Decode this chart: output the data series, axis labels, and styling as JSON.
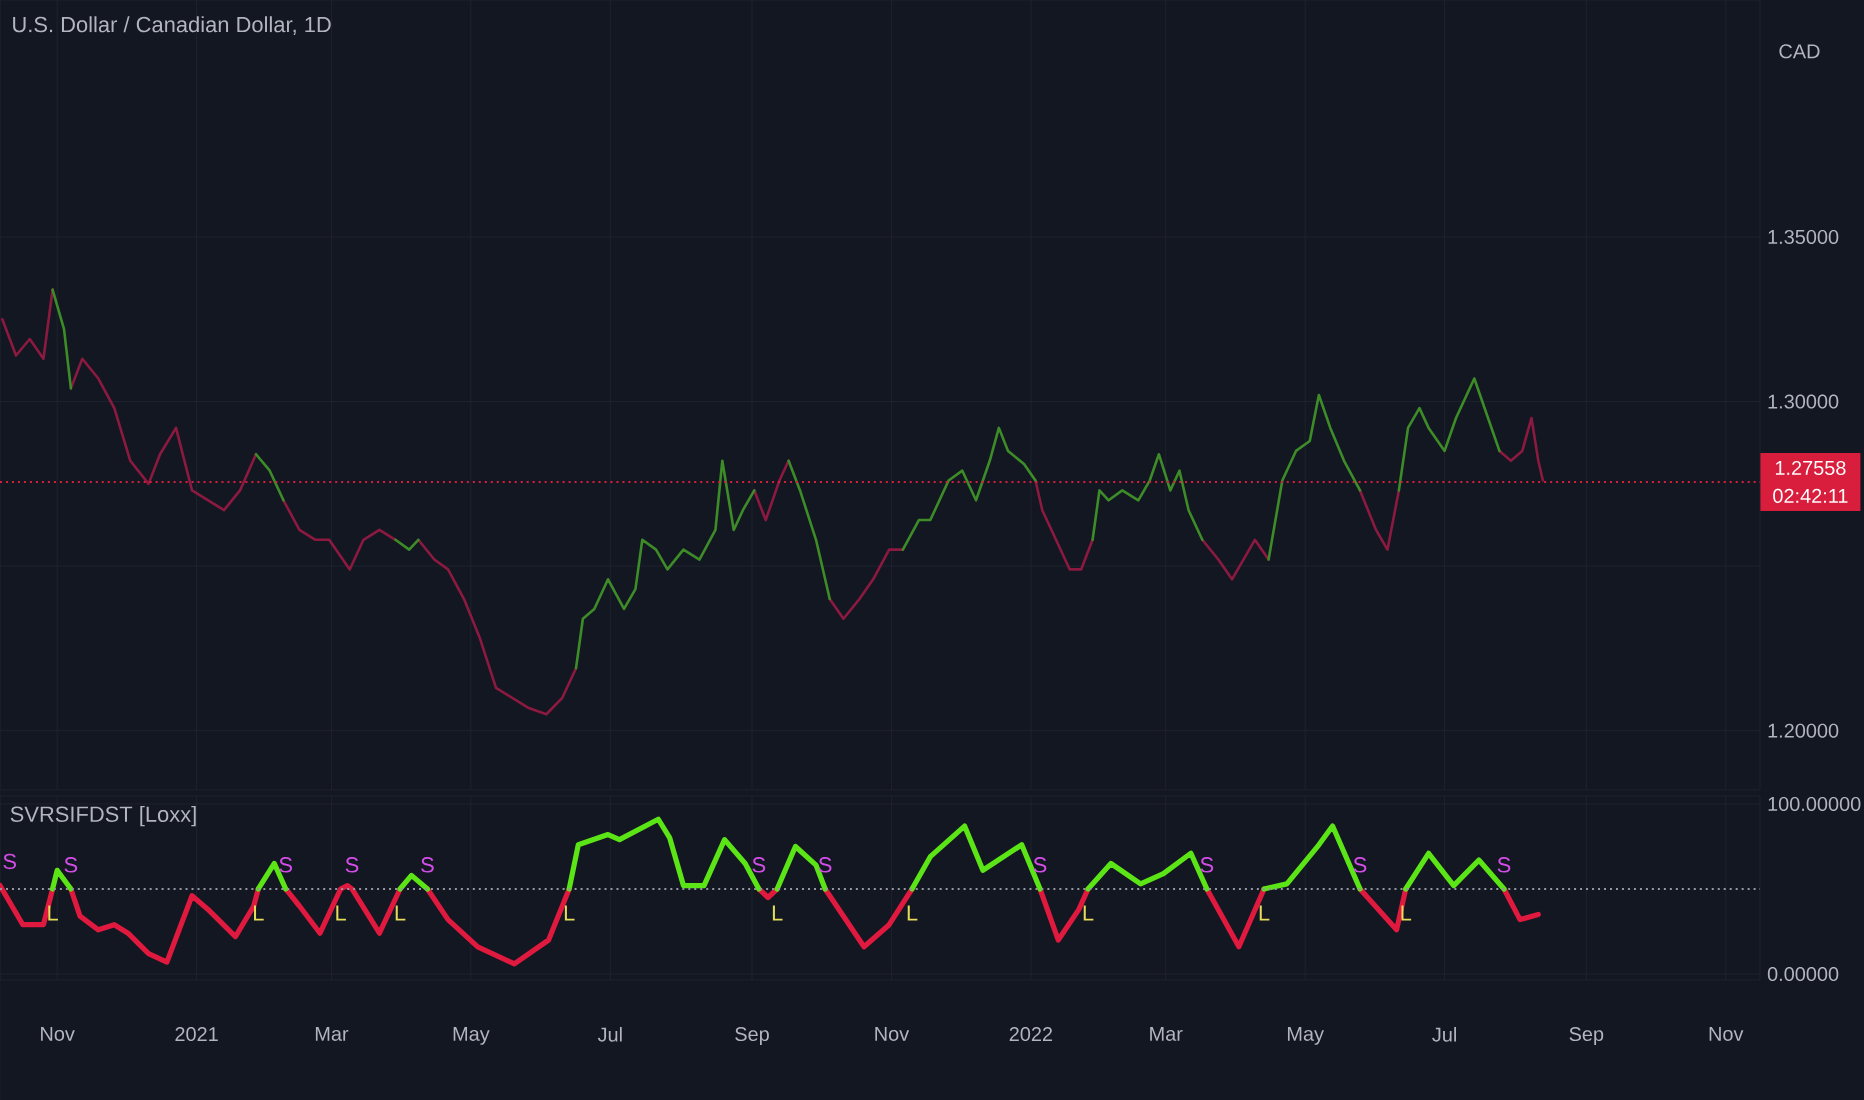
{
  "chart_data": [
    {
      "type": "line",
      "title": "U.S. Dollar / Canadian Dollar, 1D",
      "ylabel": "CAD",
      "x": [
        "2020-10-08",
        "2020-10-14",
        "2020-10-20",
        "2020-10-26",
        "2020-10-30",
        "2020-11-04",
        "2020-11-07",
        "2020-11-12",
        "2020-11-19",
        "2020-11-26",
        "2020-12-03",
        "2020-12-11",
        "2020-12-16",
        "2020-12-23",
        "2020-12-30",
        "2021-01-06",
        "2021-01-13",
        "2021-01-20",
        "2021-01-27",
        "2021-02-02",
        "2021-02-08",
        "2021-02-15",
        "2021-02-22",
        "2021-02-28",
        "2021-03-09",
        "2021-03-15",
        "2021-03-22",
        "2021-03-29",
        "2021-04-04",
        "2021-04-08",
        "2021-04-15",
        "2021-04-21",
        "2021-04-28",
        "2021-05-05",
        "2021-05-12",
        "2021-05-19",
        "2021-05-26",
        "2021-06-03",
        "2021-06-10",
        "2021-06-16",
        "2021-06-19",
        "2021-06-24",
        "2021-06-30",
        "2021-07-07",
        "2021-07-12",
        "2021-07-15",
        "2021-07-21",
        "2021-07-26",
        "2021-08-02",
        "2021-08-09",
        "2021-08-16",
        "2021-08-19",
        "2021-08-24",
        "2021-08-28",
        "2021-09-02",
        "2021-09-07",
        "2021-09-13",
        "2021-09-17",
        "2021-09-22",
        "2021-09-29",
        "2021-10-05",
        "2021-10-11",
        "2021-10-18",
        "2021-10-24",
        "2021-10-31",
        "2021-11-06",
        "2021-11-13",
        "2021-11-18",
        "2021-11-26",
        "2021-12-02",
        "2021-12-08",
        "2021-12-14",
        "2021-12-18",
        "2021-12-22",
        "2021-12-29",
        "2022-01-03",
        "2022-01-06",
        "2022-01-12",
        "2022-01-18",
        "2022-01-23",
        "2022-01-28",
        "2022-01-31",
        "2022-02-04",
        "2022-02-10",
        "2022-02-17",
        "2022-02-22",
        "2022-02-26",
        "2022-03-03",
        "2022-03-07",
        "2022-03-11",
        "2022-03-17",
        "2022-03-24",
        "2022-03-30",
        "2022-04-04",
        "2022-04-09",
        "2022-04-15",
        "2022-04-21",
        "2022-04-27",
        "2022-05-03",
        "2022-05-07",
        "2022-05-12",
        "2022-05-18",
        "2022-05-25",
        "2022-06-01",
        "2022-06-06",
        "2022-06-11",
        "2022-06-15",
        "2022-06-20",
        "2022-06-24",
        "2022-07-01",
        "2022-07-06",
        "2022-07-10",
        "2022-07-14",
        "2022-07-20",
        "2022-07-25",
        "2022-07-30",
        "2022-08-04",
        "2022-08-08",
        "2022-08-11",
        "2022-08-13"
      ],
      "series": [
        {
          "color": "#8c1a40",
          "values": [
            1.325,
            1.314,
            1.319,
            1.313,
            1.334,
            null,
            1.304,
            1.313,
            1.307,
            1.298,
            1.282,
            1.275,
            1.284,
            1.292,
            1.273,
            1.27,
            1.267,
            1.273,
            1.284,
            null,
            1.27,
            1.261,
            1.258,
            1.258,
            1.249,
            1.258,
            1.261,
            1.258,
            null,
            1.258,
            1.252,
            1.249,
            1.24,
            1.228,
            1.213,
            1.21,
            1.207,
            1.205,
            1.21,
            1.219,
            null,
            null,
            null,
            null,
            null,
            null,
            null,
            null,
            null,
            null,
            null,
            null,
            null,
            null,
            1.273,
            1.264,
            1.276,
            1.282,
            null,
            null,
            1.24,
            1.234,
            1.24,
            1.246,
            1.255,
            1.255,
            null,
            null,
            null,
            null,
            null,
            null,
            null,
            null,
            null,
            1.276,
            1.267,
            1.258,
            1.249,
            1.249,
            1.258,
            null,
            null,
            null,
            null,
            null,
            null,
            null,
            null,
            null,
            1.258,
            1.252,
            1.246,
            1.252,
            1.258,
            1.252,
            null,
            null,
            null,
            null,
            null,
            null,
            1.273,
            1.261,
            1.255,
            1.273,
            null,
            null,
            null,
            null,
            null,
            null,
            null,
            null,
            1.285,
            1.282,
            1.285,
            1.295,
            1.282,
            1.276
          ]
        },
        {
          "color": "#3d8c28",
          "values": [
            null,
            null,
            null,
            null,
            1.334,
            1.322,
            1.304,
            null,
            null,
            null,
            null,
            null,
            null,
            null,
            null,
            null,
            null,
            null,
            1.284,
            1.279,
            1.27,
            null,
            null,
            null,
            null,
            null,
            null,
            1.258,
            1.255,
            1.258,
            null,
            null,
            null,
            null,
            null,
            null,
            null,
            null,
            null,
            1.219,
            1.234,
            1.237,
            1.246,
            1.237,
            1.243,
            1.258,
            1.255,
            1.249,
            1.255,
            1.252,
            1.261,
            1.282,
            1.261,
            1.267,
            1.273,
            null,
            null,
            1.282,
            1.273,
            1.258,
            1.24,
            null,
            null,
            null,
            null,
            1.255,
            1.264,
            1.264,
            1.276,
            1.279,
            1.27,
            1.282,
            1.292,
            1.285,
            1.281,
            1.276,
            null,
            null,
            null,
            null,
            1.258,
            1.273,
            1.27,
            1.273,
            1.27,
            1.276,
            1.284,
            1.273,
            1.279,
            1.267,
            1.258,
            null,
            null,
            null,
            null,
            1.252,
            1.276,
            1.285,
            1.288,
            1.302,
            1.292,
            1.282,
            1.273,
            null,
            null,
            1.273,
            1.292,
            1.298,
            1.292,
            1.285,
            1.295,
            1.301,
            1.307,
            1.295,
            1.285,
            null,
            null,
            null,
            null,
            null
          ]
        }
      ],
      "xlim": [
        "2020-10-07",
        "2022-11-16"
      ],
      "xticks": [
        {
          "value": "2020-11-01",
          "label": null
        },
        {
          "value": "2021-01-01",
          "label": null
        },
        {
          "value": "2021-03-01",
          "label": null
        },
        {
          "value": "2021-05-01",
          "label": null
        },
        {
          "value": "2021-07-01",
          "label": null
        },
        {
          "value": "2021-09-01",
          "label": null
        },
        {
          "value": "2021-11-01",
          "label": null
        },
        {
          "value": "2022-01-01",
          "label": null
        },
        {
          "value": "2022-03-01",
          "label": null
        },
        {
          "value": "2022-05-01",
          "label": null
        },
        {
          "value": "2022-07-01",
          "label": null
        },
        {
          "value": "2022-09-01",
          "label": null
        },
        {
          "value": "2022-11-01",
          "label": null
        }
      ],
      "ylim": [
        1.182,
        1.422
      ],
      "yticks": [
        {
          "value": 1.2,
          "label": "1.20000"
        },
        {
          "value": 1.25,
          "label": null
        },
        {
          "value": 1.3,
          "label": "1.30000"
        },
        {
          "value": 1.35,
          "label": "1.35000"
        }
      ],
      "tick_labels": "y",
      "grid": true,
      "ref_lines": [
        {
          "axis": "y",
          "value": 1.27558,
          "label": "1.27558",
          "color": "#d81e3c",
          "line_style": "dotted"
        }
      ],
      "annotations": [
        "02:42:11"
      ]
    },
    {
      "type": "line",
      "title": "SVRSIFDST [Loxx]",
      "x": [
        "2020-10-07",
        "2020-10-17",
        "2020-10-26",
        "2020-10-30",
        "2020-11-01",
        "2020-11-07",
        "2020-11-11",
        "2020-11-19",
        "2020-11-26",
        "2020-12-02",
        "2020-12-11",
        "2020-12-19",
        "2020-12-30",
        "2021-01-06",
        "2021-01-18",
        "2021-01-26",
        "2021-01-28",
        "2021-02-04",
        "2021-02-09",
        "2021-02-15",
        "2021-02-24",
        "2021-03-05",
        "2021-03-08",
        "2021-03-10",
        "2021-03-22",
        "2021-03-31",
        "2021-04-05",
        "2021-04-12",
        "2021-04-21",
        "2021-05-04",
        "2021-05-20",
        "2021-06-04",
        "2021-06-13",
        "2021-06-17",
        "2021-06-30",
        "2021-07-05",
        "2021-07-22",
        "2021-07-27",
        "2021-08-02",
        "2021-08-11",
        "2021-08-20",
        "2021-08-29",
        "2021-09-04",
        "2021-09-08",
        "2021-09-12",
        "2021-09-20",
        "2021-09-29",
        "2021-10-03",
        "2021-10-20",
        "2021-10-31",
        "2021-11-10",
        "2021-11-18",
        "2021-12-03",
        "2021-12-11",
        "2021-12-28",
        "2022-01-05",
        "2022-01-13",
        "2022-01-22",
        "2022-01-26",
        "2022-02-05",
        "2022-02-18",
        "2022-02-28",
        "2022-03-12",
        "2022-03-19",
        "2022-04-02",
        "2022-04-13",
        "2022-04-23",
        "2022-05-07",
        "2022-05-13",
        "2022-05-25",
        "2022-06-10",
        "2022-06-14",
        "2022-06-24",
        "2022-07-05",
        "2022-07-16",
        "2022-07-27",
        "2022-08-03",
        "2022-08-11"
      ],
      "series": [
        {
          "color": "#e0193f",
          "values": [
            52,
            29,
            29,
            50,
            null,
            50,
            34,
            26,
            29,
            24,
            12,
            7,
            46,
            38,
            22,
            40,
            50,
            null,
            50,
            40,
            24,
            50,
            52,
            50,
            24,
            50,
            null,
            50,
            32,
            16,
            6,
            20,
            50,
            null,
            null,
            null,
            null,
            null,
            null,
            null,
            null,
            null,
            50,
            45,
            50,
            null,
            null,
            50,
            16,
            29,
            50,
            null,
            null,
            null,
            null,
            50,
            20,
            38,
            50,
            null,
            null,
            null,
            null,
            50,
            16,
            50,
            null,
            null,
            null,
            50,
            26,
            50,
            null,
            null,
            null,
            50,
            32,
            35
          ]
        },
        {
          "color": "#5be516",
          "values": [
            null,
            null,
            null,
            50,
            61,
            50,
            null,
            null,
            null,
            null,
            null,
            null,
            null,
            null,
            null,
            null,
            50,
            65,
            50,
            null,
            null,
            null,
            null,
            null,
            null,
            50,
            58,
            50,
            null,
            null,
            null,
            null,
            50,
            76,
            82,
            79,
            91,
            80,
            52,
            52,
            79,
            65,
            50,
            null,
            50,
            75,
            64,
            50,
            null,
            null,
            50,
            69,
            87,
            61,
            76,
            50,
            null,
            null,
            50,
            65,
            53,
            59,
            71,
            50,
            null,
            50,
            53,
            76,
            87,
            50,
            null,
            50,
            71,
            52,
            67,
            50,
            null,
            null
          ]
        }
      ],
      "xlim": [
        "2020-10-07",
        "2022-11-16"
      ],
      "xticks": [
        {
          "value": "2020-11-01",
          "label": "Nov"
        },
        {
          "value": "2021-01-01",
          "label": "2021"
        },
        {
          "value": "2021-03-01",
          "label": "Mar"
        },
        {
          "value": "2021-05-01",
          "label": "May"
        },
        {
          "value": "2021-07-01",
          "label": "Jul"
        },
        {
          "value": "2021-09-01",
          "label": "Sep"
        },
        {
          "value": "2021-11-01",
          "label": "Nov"
        },
        {
          "value": "2022-01-01",
          "label": "2022"
        },
        {
          "value": "2022-03-01",
          "label": "Mar"
        },
        {
          "value": "2022-05-01",
          "label": "May"
        },
        {
          "value": "2022-07-01",
          "label": "Jul"
        },
        {
          "value": "2022-09-01",
          "label": "Sep"
        },
        {
          "value": "2022-11-01",
          "label": "Nov"
        }
      ],
      "ylim": [
        -3.5,
        104.7
      ],
      "yticks": [
        {
          "value": 0,
          "label": "0.00000"
        },
        {
          "value": 100,
          "label": "100.00000"
        }
      ],
      "grid": true,
      "ref_lines": [
        {
          "axis": "y",
          "value": 50,
          "color": "#9598a1",
          "line_style": "dotted"
        }
      ],
      "annotations": [
        {
          "text": "S",
          "x": "2020-10-07",
          "y": 52
        },
        {
          "text": "S",
          "x": "2020-11-07",
          "y": 50
        },
        {
          "text": "S",
          "x": "2021-02-09",
          "y": 50
        },
        {
          "text": "S",
          "x": "2021-03-10",
          "y": 50
        },
        {
          "text": "S",
          "x": "2021-04-12",
          "y": 50
        },
        {
          "text": "S",
          "x": "2021-09-04",
          "y": 50
        },
        {
          "text": "S",
          "x": "2021-10-03",
          "y": 50
        },
        {
          "text": "S",
          "x": "2022-01-05",
          "y": 50
        },
        {
          "text": "S",
          "x": "2022-03-19",
          "y": 50
        },
        {
          "text": "S",
          "x": "2022-05-25",
          "y": 50
        },
        {
          "text": "S",
          "x": "2022-07-27",
          "y": 50
        },
        {
          "text": "L",
          "x": "2020-10-30",
          "y": 50
        },
        {
          "text": "L",
          "x": "2021-01-28",
          "y": 50
        },
        {
          "text": "L",
          "x": "2021-03-05",
          "y": 50
        },
        {
          "text": "L",
          "x": "2021-03-31",
          "y": 50
        },
        {
          "text": "L",
          "x": "2021-06-13",
          "y": 50
        },
        {
          "text": "L",
          "x": "2021-09-12",
          "y": 50
        },
        {
          "text": "L",
          "x": "2021-11-10",
          "y": 50
        },
        {
          "text": "L",
          "x": "2022-01-26",
          "y": 50
        },
        {
          "text": "L",
          "x": "2022-04-13",
          "y": 50
        },
        {
          "text": "L",
          "x": "2022-06-14",
          "y": 50
        }
      ]
    }
  ]
}
